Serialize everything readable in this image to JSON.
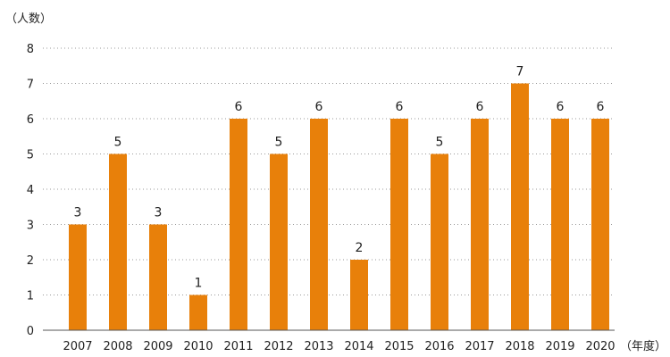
{
  "chart_data": {
    "type": "bar",
    "ylabel": "（人数）",
    "xlabel": "（年度）",
    "categories": [
      "2007",
      "2008",
      "2009",
      "2010",
      "2011",
      "2012",
      "2013",
      "2014",
      "2015",
      "2016",
      "2017",
      "2018",
      "2019",
      "2020"
    ],
    "values": [
      3,
      5,
      3,
      1,
      6,
      5,
      6,
      2,
      6,
      5,
      6,
      7,
      6,
      6
    ],
    "ylim": [
      0,
      8
    ],
    "yticks": [
      0,
      1,
      2,
      3,
      4,
      5,
      6,
      7,
      8
    ],
    "grid": "horizontal dotted",
    "bar_color": "#E8800A",
    "data_labels": true
  }
}
